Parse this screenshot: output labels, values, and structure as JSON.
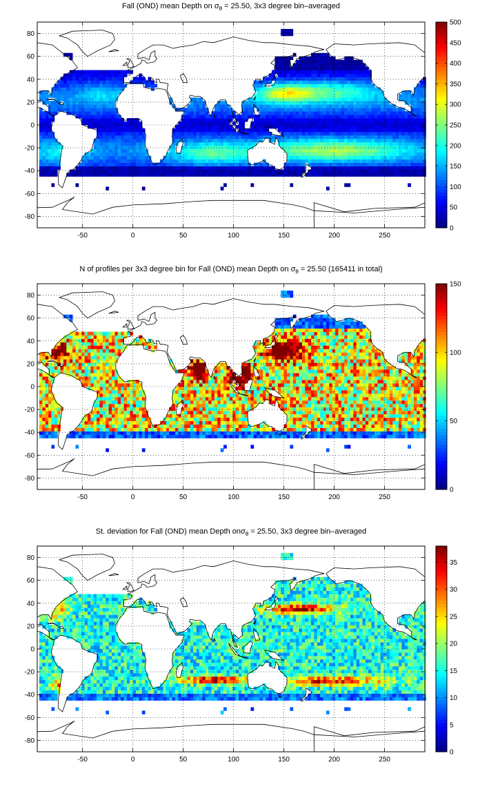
{
  "chart_data": [
    {
      "type": "heatmap",
      "title": "Fall (OND) mean Depth on σθ = 25.50, 3x3 degree bin–averaged",
      "title_parts": {
        "prefix": "Fall (OND) mean Depth on σ",
        "sub": "θ",
        "suffix": " = 25.50, 3x3 degree bin–averaged"
      },
      "xlim": [
        -95,
        290
      ],
      "ylim": [
        -90,
        90
      ],
      "xticks": [
        -50,
        0,
        50,
        100,
        150,
        200,
        250
      ],
      "yticks": [
        -80,
        -60,
        -40,
        -20,
        0,
        20,
        40,
        60,
        80
      ],
      "grid": true,
      "colorbar": {
        "min": 0,
        "max": 500,
        "ticks": [
          0,
          50,
          100,
          150,
          200,
          250,
          300,
          350,
          400,
          450,
          500
        ],
        "colormap": "jet"
      },
      "field": "depth"
    },
    {
      "type": "heatmap",
      "title": "N of profiles per 3x3 degree bin for Fall (OND) mean Depth on σθ = 25.50 (165411 in total)",
      "title_parts": {
        "prefix": "N of profiles per 3x3 degree bin for Fall (OND) mean Depth on σ",
        "sub": "θ",
        "suffix": " = 25.50 (165411 in total)"
      },
      "xlim": [
        -95,
        290
      ],
      "ylim": [
        -90,
        90
      ],
      "xticks": [
        -50,
        0,
        50,
        100,
        150,
        200,
        250
      ],
      "yticks": [
        -80,
        -60,
        -40,
        -20,
        0,
        20,
        40,
        60,
        80
      ],
      "grid": true,
      "colorbar": {
        "min": 0,
        "max": 150,
        "ticks": [
          0,
          50,
          100,
          150
        ],
        "colormap": "jet"
      },
      "field": "count"
    },
    {
      "type": "heatmap",
      "title": "St. deviation for Fall (OND) mean Depth onσθ = 25.50, 3x3 degree bin–averaged",
      "title_parts": {
        "prefix": "St. deviation for Fall (OND) mean Depth onσ",
        "sub": "θ",
        "suffix": " = 25.50, 3x3 degree bin–averaged"
      },
      "xlim": [
        -95,
        290
      ],
      "ylim": [
        -90,
        90
      ],
      "xticks": [
        -50,
        0,
        50,
        100,
        150,
        200,
        250
      ],
      "yticks": [
        -80,
        -60,
        -40,
        -20,
        0,
        20,
        40,
        60,
        80
      ],
      "grid": true,
      "colorbar": {
        "min": 0,
        "max": 38,
        "ticks": [
          0,
          5,
          10,
          15,
          20,
          25,
          30,
          35
        ],
        "colormap": "jet"
      },
      "field": "std"
    }
  ]
}
